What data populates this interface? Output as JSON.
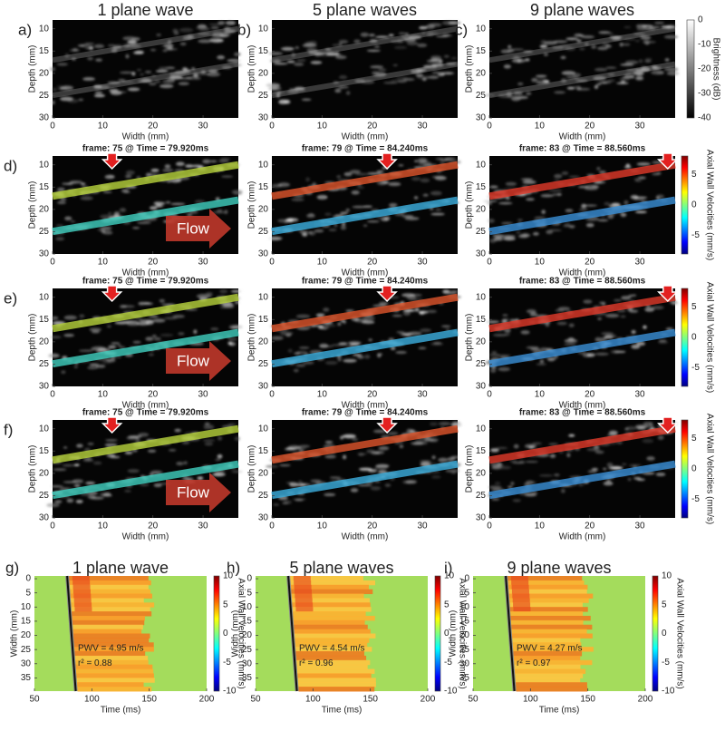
{
  "bmode": {
    "column_titles": [
      "1 plane wave",
      "5 plane waves",
      "9 plane waves"
    ],
    "panel_labels": [
      "a)",
      "b)",
      "c)"
    ],
    "x_label": "Width (mm)",
    "y_label": "Depth (mm)",
    "x_ticks": [
      0,
      10,
      20,
      30
    ],
    "y_ticks": [
      10,
      15,
      20,
      25,
      30
    ],
    "colorbar": {
      "label": "Brightness (dB)",
      "ticks": [
        0,
        -10,
        -20,
        -30,
        -40
      ]
    }
  },
  "velocity": {
    "x_label": "Width (mm)",
    "y_label": "Depth (mm)",
    "x_ticks": [
      0,
      10,
      20,
      30
    ],
    "y_ticks": [
      10,
      15,
      20,
      25,
      30
    ],
    "flow_label": "Flow",
    "colorbar": {
      "label": "Axial Wall Velocities (mm/s)",
      "ticks": [
        5,
        0,
        -5
      ]
    },
    "rows": [
      {
        "label": "d)",
        "frames": [
          "frame: 75 @ Time = 79.920ms",
          "frame: 79 @ Time = 84.240ms",
          "frame: 83 @ Time = 88.560ms"
        ]
      },
      {
        "label": "e)",
        "frames": [
          "frame: 75 @ Time = 79.920ms",
          "frame: 79 @ Time = 84.240ms",
          "frame: 83 @ Time = 88.560ms"
        ]
      },
      {
        "label": "f)",
        "frames": [
          "frame: 75 @ Time = 79.920ms",
          "frame: 79 @ Time = 84.240ms",
          "frame: 83 @ Time = 88.560ms"
        ]
      }
    ]
  },
  "spacetime": {
    "x_label": "Time (ms)",
    "y_label": "Width (mm)",
    "x_ticks": [
      50,
      100,
      150,
      200
    ],
    "y_ticks": [
      0,
      5,
      10,
      15,
      20,
      25,
      30,
      35
    ],
    "colorbar": {
      "label": "Axial Wall Velocities (mm/s)",
      "ticks": [
        10,
        5,
        0,
        -5,
        -10
      ]
    },
    "panels": [
      {
        "label": "g)",
        "title": "1 plane wave",
        "pwv": "PWV = 4.95 m/s",
        "r2": "r² = 0.88"
      },
      {
        "label": "h)",
        "title": "5 plane waves",
        "pwv": "PWV = 4.54 m/s",
        "r2": "r² = 0.96"
      },
      {
        "label": "i)",
        "title": "9 plane waves",
        "pwv": "PWV = 4.27 m/s",
        "r2": "r² = 0.97"
      }
    ]
  }
}
